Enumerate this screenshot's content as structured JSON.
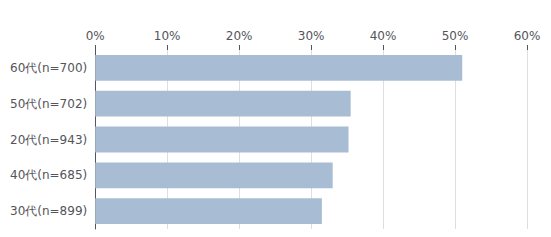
{
  "chart_data": {
    "type": "bar",
    "orientation": "horizontal",
    "categories": [
      "60代(n=700)",
      "50代(n=702)",
      "20代(n=943)",
      "40代(n=685)",
      "30代(n=899)"
    ],
    "values": [
      51.0,
      35.5,
      35.2,
      33.0,
      31.5
    ],
    "color": "#a8bdd4",
    "xlim": [
      0,
      60
    ],
    "xticks": [
      {
        "value": 0,
        "label": "0%"
      },
      {
        "value": 10,
        "label": "10%"
      },
      {
        "value": 20,
        "label": "20%"
      },
      {
        "value": 30,
        "label": "30%"
      },
      {
        "value": 40,
        "label": "40%"
      },
      {
        "value": 50,
        "label": "50%"
      },
      {
        "value": 60,
        "label": "60%"
      }
    ],
    "grid": true
  }
}
